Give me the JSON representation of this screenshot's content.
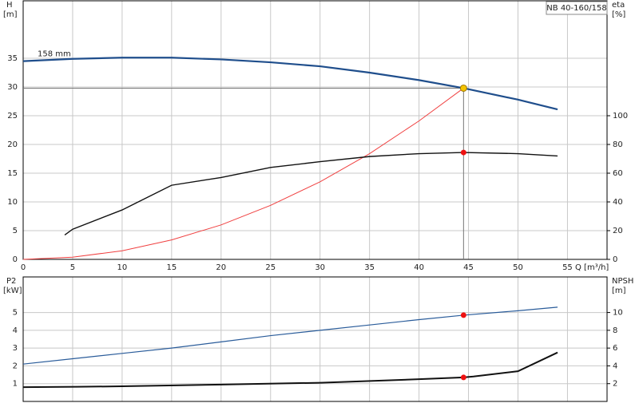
{
  "chart_data": [
    {
      "type": "line",
      "title": "NB 40-160/158",
      "ylabel": [
        "H",
        "[m]"
      ],
      "y2label": [
        "eta",
        "[%]"
      ],
      "xlabel": "Q [m³/h]",
      "xlim": [
        0,
        59
      ],
      "xticks": [
        0,
        5,
        10,
        15,
        20,
        25,
        30,
        35,
        40,
        45,
        50,
        55
      ],
      "ylim": [
        0,
        45
      ],
      "yticks": [
        0,
        5,
        10,
        15,
        20,
        25,
        30,
        35
      ],
      "y2lim": [
        0,
        180
      ],
      "y2ticks": [
        0,
        20,
        40,
        60,
        80,
        100
      ],
      "grid": true,
      "series": [
        {
          "name": "158 mm",
          "color": "#1f4e8c",
          "width": 2.2,
          "x": [
            0,
            5,
            10,
            15,
            20,
            25,
            30,
            35,
            40,
            44.5,
            50,
            54
          ],
          "values": [
            34.5,
            34.9,
            35.1,
            35.1,
            34.8,
            34.3,
            33.6,
            32.5,
            31.2,
            29.8,
            27.8,
            26.1
          ]
        },
        {
          "color": "#f04040",
          "width": 1,
          "x": [
            0,
            5,
            10,
            15,
            20,
            25,
            30,
            35,
            40,
            44.5
          ],
          "values": [
            0,
            0.38,
            1.5,
            3.39,
            6.0,
            9.4,
            13.5,
            18.4,
            24.1,
            29.8
          ]
        },
        {
          "color": "#111111",
          "width": 1.4,
          "axis": "y2",
          "x": [
            4.2,
            5,
            10,
            15,
            20,
            25,
            30,
            35,
            40,
            44.5,
            50,
            54
          ],
          "values": [
            17,
            21,
            34.4,
            51.6,
            57,
            64,
            68,
            71.6,
            73.6,
            74.4,
            73.6,
            72
          ]
        }
      ],
      "operating_point": {
        "x": 44.5,
        "y": 29.8,
        "color": "#f5c400"
      },
      "markers": [
        {
          "x": 44.5,
          "y": 74.4,
          "axis": "y2",
          "color": "#ee1111"
        }
      ]
    },
    {
      "type": "line",
      "ylabel": [
        "P2",
        "[kW]"
      ],
      "y2label": [
        "NPSH",
        "[m]"
      ],
      "xlim": [
        0,
        59
      ],
      "xticks": [
        0,
        5,
        10,
        15,
        20,
        25,
        30,
        35,
        40,
        45,
        50,
        55
      ],
      "ylim": [
        0,
        7
      ],
      "yticks": [
        1,
        2,
        3,
        4,
        5
      ],
      "y2lim": [
        0,
        14
      ],
      "y2ticks": [
        2,
        4,
        6,
        8,
        10
      ],
      "grid": true,
      "series": [
        {
          "color": "#2a5c9a",
          "width": 1.2,
          "x": [
            0,
            5,
            10,
            15,
            20,
            25,
            30,
            35,
            40,
            44.5,
            50,
            54
          ],
          "values": [
            2.1,
            2.4,
            2.7,
            3.0,
            3.35,
            3.7,
            4.0,
            4.3,
            4.6,
            4.85,
            5.1,
            5.3
          ]
        },
        {
          "color": "#111111",
          "width": 2,
          "axis": "y2",
          "x": [
            0,
            5.5,
            10,
            20,
            30,
            40,
            44.5,
            45.5,
            50,
            54
          ],
          "values": [
            1.6,
            1.65,
            1.7,
            1.9,
            2.1,
            2.5,
            2.7,
            2.8,
            3.4,
            5.5
          ]
        }
      ],
      "markers": [
        {
          "x": 44.5,
          "y": 4.85,
          "color": "#ee1111"
        },
        {
          "x": 44.5,
          "y": 2.7,
          "axis": "y2",
          "color": "#ee1111"
        }
      ]
    }
  ]
}
